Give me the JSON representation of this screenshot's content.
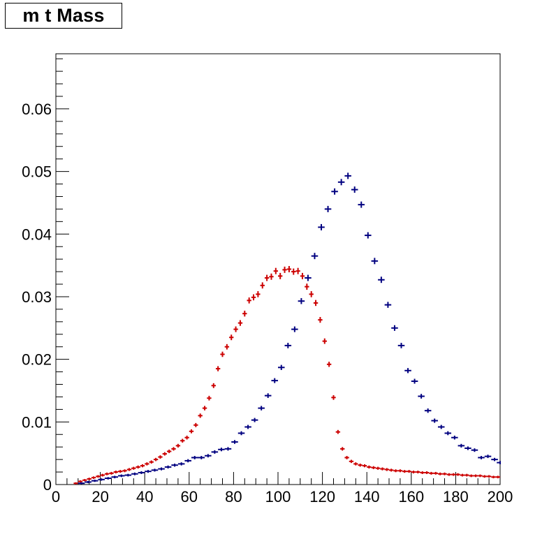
{
  "chart_data": {
    "type": "scatter",
    "title": "m t Mass",
    "xlabel": "",
    "ylabel": "",
    "xlim": [
      0,
      200
    ],
    "ylim": [
      0,
      0.0688
    ],
    "x_ticks": [
      "0",
      "20",
      "40",
      "60",
      "80",
      "100",
      "120",
      "140",
      "160",
      "180",
      "200"
    ],
    "y_ticks": [
      "0",
      "0.01",
      "0.02",
      "0.03",
      "0.04",
      "0.05",
      "0.06"
    ],
    "grid": false,
    "legend": "none",
    "series": [
      {
        "color": "#cc0000",
        "bin_width": 2,
        "x": [
          9,
          11,
          13,
          15,
          17,
          19,
          21,
          23,
          25,
          27,
          29,
          31,
          33,
          35,
          37,
          39,
          41,
          43,
          45,
          47,
          49,
          51,
          53,
          55,
          57,
          59,
          61,
          63,
          65,
          67,
          69,
          71,
          73,
          75,
          77,
          79,
          81,
          83,
          85,
          87,
          89,
          91,
          93,
          95,
          97,
          99,
          101,
          103,
          105,
          107,
          109,
          111,
          113,
          115,
          117,
          119,
          121,
          123,
          125,
          127,
          129,
          131,
          133,
          135,
          137,
          139,
          141,
          143,
          145,
          147,
          149,
          151,
          153,
          155,
          157,
          159,
          161,
          163,
          165,
          167,
          169,
          171,
          173,
          175,
          177,
          179,
          181,
          183,
          185,
          187,
          189,
          191,
          193,
          195,
          197,
          199
        ],
        "values": [
          0.0002,
          0.0005,
          0.0007,
          0.0009,
          0.0011,
          0.0013,
          0.0015,
          0.0017,
          0.0018,
          0.002,
          0.0021,
          0.0022,
          0.0024,
          0.0026,
          0.0028,
          0.003,
          0.0033,
          0.0036,
          0.004,
          0.0044,
          0.0049,
          0.0053,
          0.0057,
          0.0062,
          0.007,
          0.0075,
          0.0085,
          0.0095,
          0.011,
          0.0122,
          0.0138,
          0.0158,
          0.0185,
          0.0208,
          0.022,
          0.0235,
          0.0248,
          0.0258,
          0.0273,
          0.0294,
          0.0299,
          0.0304,
          0.0318,
          0.033,
          0.0332,
          0.0341,
          0.0333,
          0.0343,
          0.0344,
          0.034,
          0.0341,
          0.0333,
          0.0316,
          0.0304,
          0.029,
          0.0263,
          0.0229,
          0.0192,
          0.0139,
          0.0084,
          0.0057,
          0.0043,
          0.0037,
          0.0033,
          0.0031,
          0.003,
          0.0028,
          0.0027,
          0.0026,
          0.0025,
          0.0024,
          0.0023,
          0.0022,
          0.0022,
          0.0021,
          0.0021,
          0.002,
          0.002,
          0.0019,
          0.0019,
          0.0018,
          0.0018,
          0.0017,
          0.0017,
          0.0016,
          0.0016,
          0.0016,
          0.0015,
          0.0015,
          0.0014,
          0.0014,
          0.0014,
          0.0013,
          0.0013,
          0.0012,
          0.0012
        ]
      },
      {
        "color": "#000080",
        "bin_width": 3,
        "x": [
          11.5,
          14.5,
          17.5,
          20.5,
          23.5,
          26.5,
          29.5,
          32.5,
          35.5,
          38.5,
          41.5,
          44.5,
          47.5,
          50.5,
          53.5,
          56.5,
          59.5,
          62.5,
          65.5,
          68.5,
          71.5,
          74.5,
          77.5,
          80.5,
          83.5,
          86.5,
          89.5,
          92.5,
          95.5,
          98.5,
          101.5,
          104.5,
          107.5,
          110.5,
          113.5,
          116.5,
          119.5,
          122.5,
          125.5,
          128.5,
          131.5,
          134.5,
          137.5,
          140.5,
          143.5,
          146.5,
          149.5,
          152.5,
          155.5,
          158.5,
          161.5,
          164.5,
          167.5,
          170.5,
          173.5,
          176.5,
          179.5,
          182.5,
          185.5,
          188.5,
          191.5,
          194.5,
          197.5,
          200
        ],
        "values": [
          0.0002,
          0.0004,
          0.0006,
          0.0008,
          0.001,
          0.0012,
          0.0014,
          0.0015,
          0.0017,
          0.0019,
          0.0021,
          0.0023,
          0.0025,
          0.0028,
          0.0031,
          0.0033,
          0.0038,
          0.0043,
          0.0043,
          0.0046,
          0.0052,
          0.0056,
          0.0057,
          0.0068,
          0.0082,
          0.0092,
          0.0103,
          0.0122,
          0.0142,
          0.0166,
          0.0187,
          0.0222,
          0.0248,
          0.0293,
          0.033,
          0.0365,
          0.0411,
          0.044,
          0.0468,
          0.0483,
          0.0493,
          0.0471,
          0.0447,
          0.0398,
          0.0357,
          0.0327,
          0.0287,
          0.025,
          0.0222,
          0.0182,
          0.0165,
          0.0141,
          0.0118,
          0.0102,
          0.0092,
          0.0082,
          0.0075,
          0.0062,
          0.0058,
          0.0055,
          0.0043,
          0.0045,
          0.004,
          0.0035
        ]
      }
    ]
  }
}
